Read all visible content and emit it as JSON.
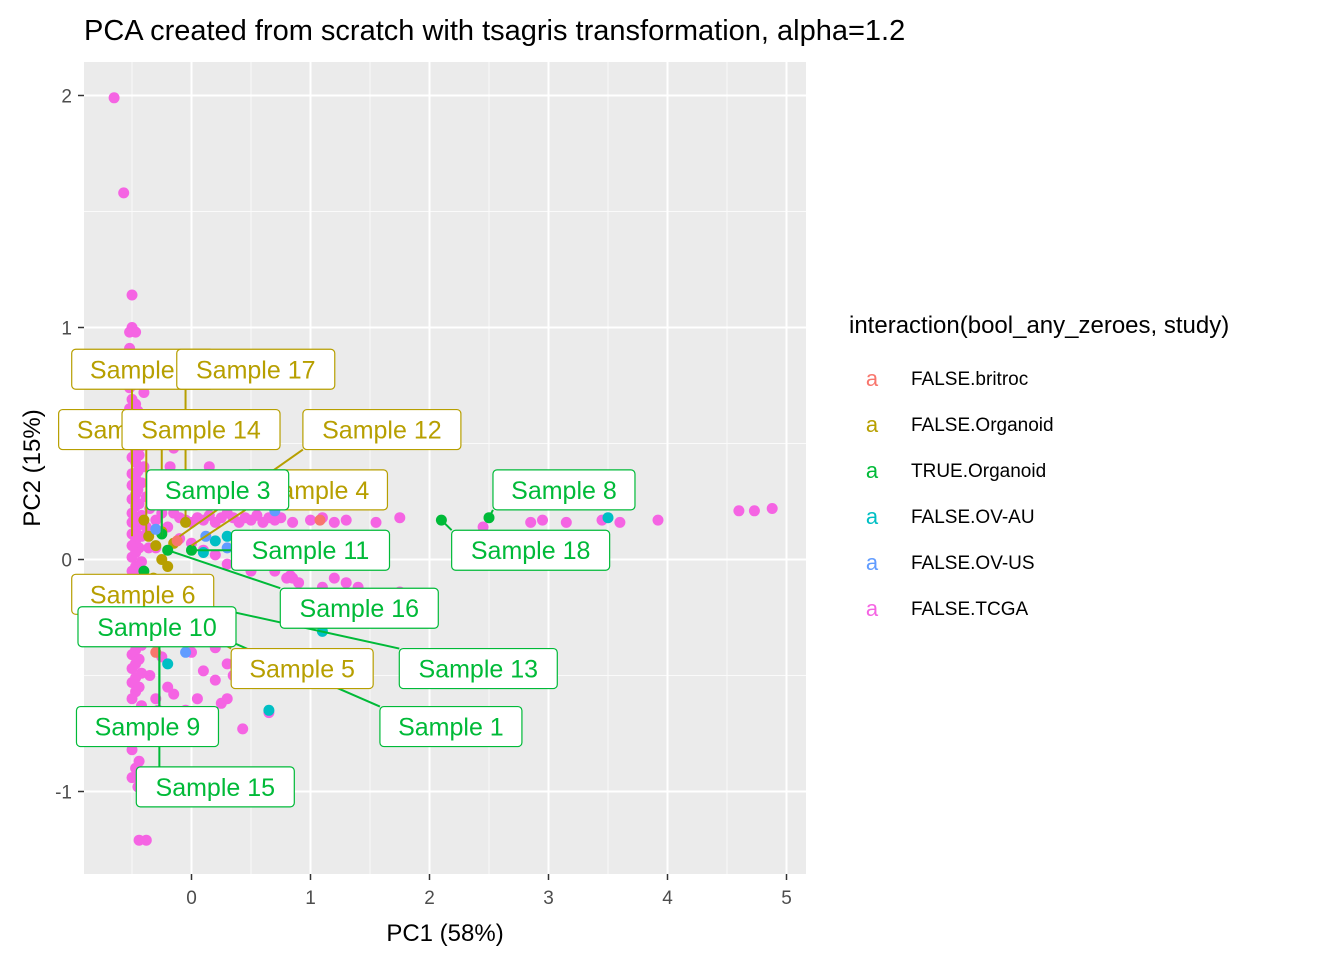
{
  "chart_data": {
    "type": "scatter",
    "title": "PCA created from scratch with tsagris transformation, alpha=1.2",
    "xlabel": "PC1 (58%)",
    "ylabel": "PC2 (15%)",
    "xlim": [
      -0.92,
      5.17
    ],
    "ylim": [
      -1.36,
      2.14
    ],
    "xticks": [
      0,
      1,
      2,
      3,
      4,
      5
    ],
    "yticks": [
      -1,
      0,
      1,
      2
    ],
    "xtick_labels": [
      "0",
      "1",
      "2",
      "3",
      "4",
      "5"
    ],
    "ytick_labels": [
      "-1",
      "0",
      "1",
      "2"
    ],
    "grid": true,
    "legend": {
      "title": "interaction(bool_any_zeroes, study)",
      "position": "right",
      "key_glyph": "a",
      "entries": [
        {
          "name": "FALSE.britroc",
          "color": "#F8766D"
        },
        {
          "name": "FALSE.Organoid",
          "color": "#B79F00"
        },
        {
          "name": "TRUE.Organoid",
          "color": "#00BA38"
        },
        {
          "name": "FALSE.OV-AU",
          "color": "#00BFC4"
        },
        {
          "name": "FALSE.OV-US",
          "color": "#619CFF"
        },
        {
          "name": "FALSE.TCGA",
          "color": "#F564E3"
        }
      ]
    },
    "series": [
      {
        "name": "FALSE.TCGA",
        "color": "#F564E3",
        "points": [
          [
            -0.65,
            1.99
          ],
          [
            -0.57,
            1.58
          ],
          [
            -0.5,
            1.14
          ],
          [
            -0.5,
            1.0
          ],
          [
            -0.52,
            0.98
          ],
          [
            -0.47,
            0.98
          ],
          [
            -0.52,
            0.91
          ],
          [
            -0.5,
            0.86
          ],
          [
            -0.52,
            0.82
          ],
          [
            -0.47,
            0.8
          ],
          [
            -0.44,
            0.78
          ],
          [
            -0.5,
            0.75
          ],
          [
            -0.52,
            0.74
          ],
          [
            -0.4,
            0.72
          ],
          [
            -0.5,
            0.69
          ],
          [
            -0.47,
            0.67
          ],
          [
            -0.52,
            0.65
          ],
          [
            -0.45,
            0.64
          ],
          [
            -0.5,
            0.62
          ],
          [
            -0.42,
            0.61
          ],
          [
            -0.48,
            0.59
          ],
          [
            -0.5,
            0.57
          ],
          [
            -0.44,
            0.55
          ],
          [
            -0.47,
            0.53
          ],
          [
            -0.5,
            0.51
          ],
          [
            -0.42,
            0.49
          ],
          [
            -0.47,
            0.47
          ],
          [
            -0.44,
            0.45
          ],
          [
            -0.5,
            0.44
          ],
          [
            -0.47,
            0.42
          ],
          [
            -0.4,
            0.4
          ],
          [
            -0.45,
            0.38
          ],
          [
            -0.5,
            0.37
          ],
          [
            -0.47,
            0.35
          ],
          [
            -0.42,
            0.33
          ],
          [
            -0.5,
            0.32
          ],
          [
            -0.45,
            0.3
          ],
          [
            -0.47,
            0.28
          ],
          [
            -0.38,
            0.27
          ],
          [
            -0.5,
            0.26
          ],
          [
            -0.44,
            0.24
          ],
          [
            -0.47,
            0.23
          ],
          [
            -0.35,
            0.22
          ],
          [
            -0.5,
            0.2
          ],
          [
            -0.42,
            0.19
          ],
          [
            -0.47,
            0.18
          ],
          [
            -0.3,
            0.17
          ],
          [
            -0.5,
            0.16
          ],
          [
            -0.44,
            0.15
          ],
          [
            -0.38,
            0.14
          ],
          [
            -0.47,
            0.12
          ],
          [
            -0.5,
            0.11
          ],
          [
            -0.42,
            0.1
          ],
          [
            -0.47,
            0.08
          ],
          [
            -0.5,
            0.06
          ],
          [
            -0.44,
            0.05
          ],
          [
            -0.47,
            0.03
          ],
          [
            -0.5,
            0.01
          ],
          [
            -0.42,
            -0.01
          ],
          [
            -0.47,
            -0.03
          ],
          [
            -0.5,
            -0.05
          ],
          [
            -0.44,
            -0.07
          ],
          [
            -0.47,
            -0.09
          ],
          [
            -0.5,
            -0.11
          ],
          [
            -0.42,
            -0.13
          ],
          [
            -0.47,
            -0.15
          ],
          [
            -0.5,
            -0.17
          ],
          [
            -0.44,
            -0.19
          ],
          [
            -0.47,
            -0.21
          ],
          [
            -0.5,
            -0.23
          ],
          [
            -0.42,
            -0.25
          ],
          [
            -0.47,
            -0.27
          ],
          [
            -0.5,
            -0.29
          ],
          [
            -0.44,
            -0.31
          ],
          [
            -0.47,
            -0.33
          ],
          [
            -0.5,
            -0.35
          ],
          [
            -0.42,
            -0.37
          ],
          [
            -0.47,
            -0.39
          ],
          [
            -0.5,
            -0.41
          ],
          [
            -0.44,
            -0.43
          ],
          [
            -0.47,
            -0.45
          ],
          [
            -0.5,
            -0.47
          ],
          [
            -0.42,
            -0.49
          ],
          [
            -0.47,
            -0.51
          ],
          [
            -0.5,
            -0.53
          ],
          [
            -0.44,
            -0.55
          ],
          [
            -0.47,
            -0.57
          ],
          [
            -0.5,
            -0.6
          ],
          [
            -0.42,
            -0.63
          ],
          [
            -0.47,
            -0.66
          ],
          [
            -0.5,
            -0.7
          ],
          [
            -0.44,
            -0.72
          ],
          [
            -0.47,
            -0.76
          ],
          [
            -0.5,
            -0.82
          ],
          [
            -0.44,
            -0.87
          ],
          [
            -0.47,
            -0.9
          ],
          [
            -0.5,
            -0.94
          ],
          [
            -0.45,
            -0.98
          ],
          [
            -0.42,
            -1.03
          ],
          [
            -0.44,
            -1.21
          ],
          [
            -0.38,
            -1.21
          ],
          [
            -0.3,
            0.3
          ],
          [
            -0.25,
            0.2
          ],
          [
            -0.2,
            0.14
          ],
          [
            -0.3,
            0.05
          ],
          [
            -0.25,
            -0.1
          ],
          [
            -0.2,
            -0.2
          ],
          [
            -0.3,
            -0.35
          ],
          [
            -0.25,
            -0.42
          ],
          [
            -0.2,
            -0.55
          ],
          [
            -0.3,
            -0.6
          ],
          [
            -0.35,
            -0.5
          ],
          [
            -0.35,
            -0.7
          ],
          [
            -0.28,
            -0.65
          ],
          [
            -0.15,
            -0.58
          ],
          [
            -0.38,
            -0.28
          ],
          [
            -0.36,
            0.05
          ],
          [
            -0.18,
            0.4
          ],
          [
            -0.15,
            0.2
          ],
          [
            -0.1,
            0.18
          ],
          [
            -0.05,
            0.17
          ],
          [
            0.0,
            0.16
          ],
          [
            0.05,
            0.18
          ],
          [
            0.1,
            0.17
          ],
          [
            0.15,
            0.19
          ],
          [
            0.2,
            0.16
          ],
          [
            0.25,
            0.18
          ],
          [
            0.3,
            0.2
          ],
          [
            0.35,
            0.18
          ],
          [
            0.4,
            0.16
          ],
          [
            0.45,
            0.18
          ],
          [
            0.5,
            0.17
          ],
          [
            0.55,
            0.19
          ],
          [
            0.6,
            0.16
          ],
          [
            0.65,
            0.18
          ],
          [
            0.7,
            0.17
          ],
          [
            0.75,
            0.18
          ],
          [
            0.85,
            0.16
          ],
          [
            1.0,
            0.17
          ],
          [
            1.1,
            0.18
          ],
          [
            1.2,
            0.16
          ],
          [
            1.3,
            0.17
          ],
          [
            1.55,
            0.16
          ],
          [
            1.75,
            0.18
          ],
          [
            -0.1,
            0.09
          ],
          [
            0.0,
            0.07
          ],
          [
            0.1,
            0.04
          ],
          [
            0.2,
            0.02
          ],
          [
            0.3,
            -0.02
          ],
          [
            0.4,
            0.0
          ],
          [
            0.5,
            -0.05
          ],
          [
            0.6,
            -0.02
          ],
          [
            0.7,
            -0.05
          ],
          [
            0.8,
            -0.08
          ],
          [
            0.9,
            -0.1
          ],
          [
            1.0,
            -0.15
          ],
          [
            1.1,
            -0.12
          ],
          [
            1.2,
            -0.08
          ],
          [
            1.3,
            -0.1
          ],
          [
            1.4,
            -0.12
          ],
          [
            1.5,
            -0.15
          ],
          [
            1.75,
            -0.14
          ],
          [
            0.85,
            -0.08
          ],
          [
            0.83,
            -0.07
          ],
          [
            0.1,
            -0.22
          ],
          [
            0.15,
            -0.3
          ],
          [
            0.2,
            -0.38
          ],
          [
            0.25,
            -0.35
          ],
          [
            0.3,
            -0.45
          ],
          [
            0.35,
            -0.5
          ],
          [
            0.05,
            -0.35
          ],
          [
            0.0,
            -0.4
          ],
          [
            0.2,
            -0.25
          ],
          [
            0.1,
            -0.48
          ],
          [
            0.05,
            -0.6
          ],
          [
            0.2,
            -0.52
          ],
          [
            0.3,
            -0.6
          ],
          [
            0.25,
            -0.62
          ],
          [
            -0.05,
            -0.65
          ],
          [
            0.65,
            -0.66
          ],
          [
            0.43,
            -0.73
          ],
          [
            0.15,
            0.4
          ],
          [
            -0.15,
            0.48
          ],
          [
            0.05,
            0.3
          ],
          [
            0.3,
            0.25
          ],
          [
            2.45,
            0.14
          ],
          [
            2.85,
            0.16
          ],
          [
            2.95,
            0.17
          ],
          [
            3.15,
            0.16
          ],
          [
            3.45,
            0.17
          ],
          [
            3.6,
            0.16
          ],
          [
            3.92,
            0.17
          ],
          [
            4.6,
            0.21
          ],
          [
            4.73,
            0.21
          ],
          [
            4.88,
            0.22
          ]
        ]
      },
      {
        "name": "FALSE.Organoid",
        "color": "#B79F00",
        "points": [
          [
            -0.4,
            0.17
          ],
          [
            -0.36,
            0.1
          ],
          [
            -0.3,
            0.06
          ],
          [
            -0.25,
            0.12
          ],
          [
            -0.15,
            0.07
          ],
          [
            -0.05,
            0.16
          ],
          [
            -0.2,
            -0.03
          ],
          [
            -0.25,
            0.0
          ],
          [
            -0.32,
            -0.08
          ]
        ]
      },
      {
        "name": "TRUE.Organoid",
        "color": "#00BA38",
        "points": [
          [
            -0.2,
            0.04
          ],
          [
            0.0,
            0.04
          ],
          [
            2.1,
            0.17
          ],
          [
            2.5,
            0.18
          ],
          [
            -0.4,
            -0.05
          ],
          [
            -0.33,
            -0.15
          ],
          [
            -0.27,
            -0.22
          ],
          [
            -0.25,
            0.11
          ]
        ]
      },
      {
        "name": "FALSE.OV-AU",
        "color": "#00BFC4",
        "points": [
          [
            0.1,
            0.03
          ],
          [
            0.3,
            0.1
          ],
          [
            1.1,
            -0.31
          ],
          [
            0.1,
            -0.2
          ],
          [
            -0.2,
            -0.45
          ],
          [
            0.65,
            -0.65
          ],
          [
            0.2,
            0.08
          ],
          [
            3.5,
            0.18
          ]
        ]
      },
      {
        "name": "FALSE.OV-US",
        "color": "#619CFF",
        "points": [
          [
            0.12,
            0.1
          ],
          [
            -0.3,
            0.13
          ],
          [
            0.3,
            0.05
          ],
          [
            -0.22,
            -0.35
          ],
          [
            -0.05,
            -0.4
          ],
          [
            -0.45,
            -0.35
          ],
          [
            0.7,
            0.21
          ]
        ]
      },
      {
        "name": "FALSE.britroc",
        "color": "#F8766D",
        "points": [
          [
            -0.12,
            0.08
          ],
          [
            -0.2,
            -0.12
          ],
          [
            1.08,
            0.17
          ],
          [
            -0.3,
            -0.4
          ]
        ]
      }
    ],
    "annotations": [
      {
        "text": "Sample 2",
        "group": "FALSE.Organoid",
        "box": [
          -0.41,
          0.82
        ],
        "point": [
          -0.5,
          0.1
        ]
      },
      {
        "text": "Sample 17",
        "group": "FALSE.Organoid",
        "box": [
          0.54,
          0.82
        ],
        "point": [
          -0.05,
          0.16
        ]
      },
      {
        "text": "Sample 7",
        "group": "FALSE.Organoid",
        "box": [
          -0.52,
          0.56
        ],
        "point": [
          -0.38,
          0.1
        ]
      },
      {
        "text": "Sample 14",
        "group": "FALSE.Organoid",
        "box": [
          0.08,
          0.56
        ],
        "point": [
          -0.25,
          0.1
        ]
      },
      {
        "text": "Sample 12",
        "group": "FALSE.Organoid",
        "box": [
          1.6,
          0.56
        ],
        "point": [
          -0.1,
          0.1
        ]
      },
      {
        "text": "Sample 4",
        "group": "FALSE.Organoid",
        "box": [
          1.05,
          0.3
        ],
        "point": [
          0.0,
          0.06
        ]
      },
      {
        "text": "Sample 6",
        "group": "FALSE.Organoid",
        "box": [
          -0.41,
          -0.15
        ],
        "point": [
          -0.36,
          -0.06
        ]
      },
      {
        "text": "Sample 5",
        "group": "FALSE.Organoid",
        "box": [
          0.93,
          -0.47
        ],
        "point": [
          -0.25,
          -0.22
        ]
      },
      {
        "text": "Sample 3",
        "group": "TRUE.Organoid",
        "box": [
          0.22,
          0.3
        ],
        "point": [
          -0.25,
          0.1
        ]
      },
      {
        "text": "Sample 8",
        "group": "TRUE.Organoid",
        "box": [
          3.13,
          0.3
        ],
        "point": [
          2.5,
          0.18
        ]
      },
      {
        "text": "Sample 11",
        "group": "TRUE.Organoid",
        "box": [
          1.0,
          0.04
        ],
        "point": [
          0.0,
          0.04
        ]
      },
      {
        "text": "Sample 18",
        "group": "TRUE.Organoid",
        "box": [
          2.85,
          0.04
        ],
        "point": [
          2.1,
          0.17
        ]
      },
      {
        "text": "Sample 16",
        "group": "TRUE.Organoid",
        "box": [
          1.41,
          -0.21
        ],
        "point": [
          -0.2,
          0.04
        ]
      },
      {
        "text": "Sample 10",
        "group": "TRUE.Organoid",
        "box": [
          -0.29,
          -0.29
        ],
        "point": [
          -0.4,
          -0.05
        ]
      },
      {
        "text": "Sample 13",
        "group": "TRUE.Organoid",
        "box": [
          2.41,
          -0.47
        ],
        "point": [
          -0.33,
          -0.15
        ]
      },
      {
        "text": "Sample 1",
        "group": "TRUE.Organoid",
        "box": [
          2.18,
          -0.72
        ],
        "point": [
          -0.27,
          -0.22
        ]
      },
      {
        "text": "Sample 9",
        "group": "TRUE.Organoid",
        "box": [
          -0.37,
          -0.72
        ],
        "point": [
          -0.27,
          -0.22
        ]
      },
      {
        "text": "Sample 15",
        "group": "TRUE.Organoid",
        "box": [
          0.2,
          -0.98
        ],
        "point": [
          -0.27,
          -0.22
        ]
      }
    ]
  }
}
